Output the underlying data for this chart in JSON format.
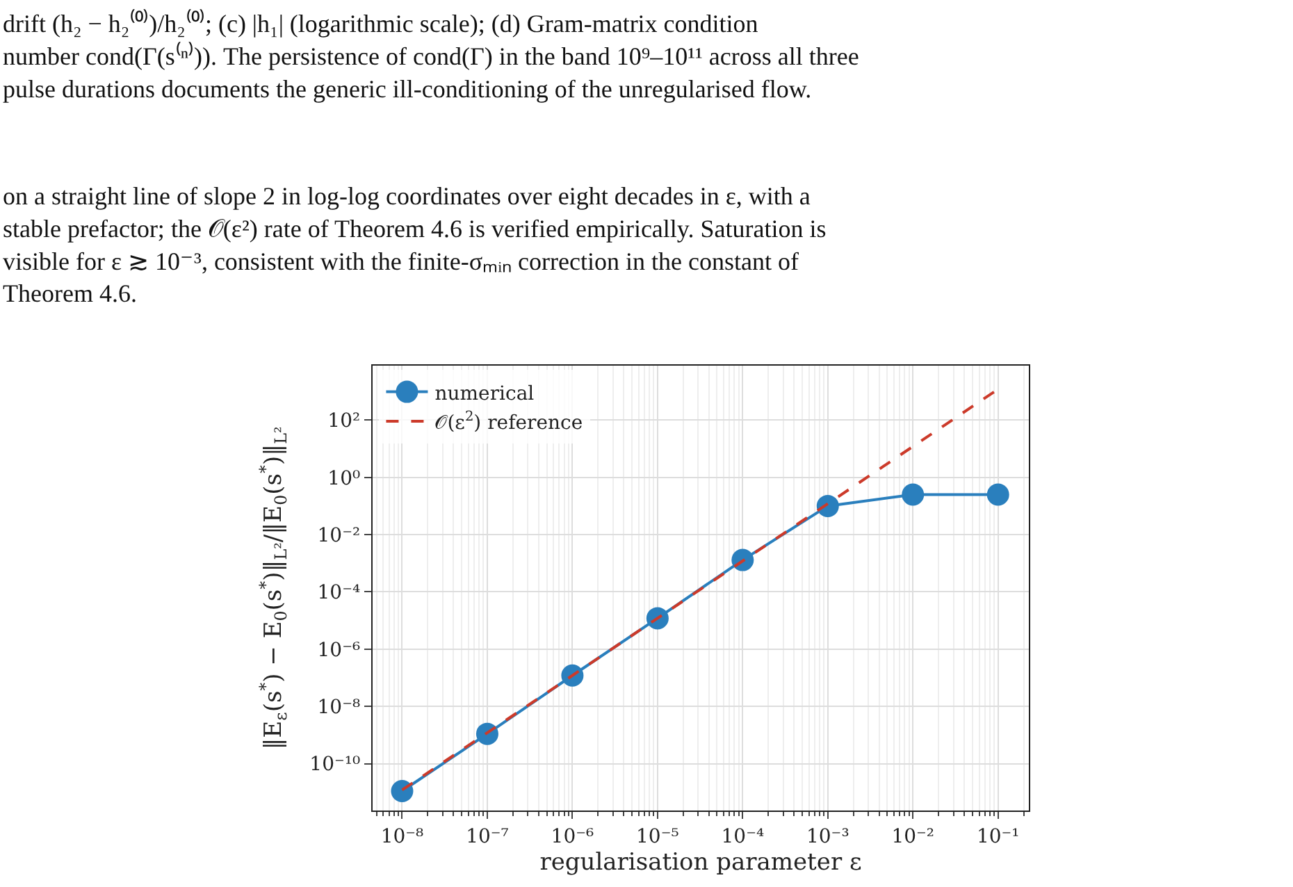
{
  "chart_data": {
    "type": "line",
    "annotations": [
      "drift (h₂ − h₂⁽⁰⁾)/h₂⁽⁰⁾; (c) |h₁| (logarithmic scale); (d) Gram-matrix condition number cond(Γ(s⁽ⁿ⁾)). The persistence of cond(Γ) in the band 10⁹–10¹¹ across all three pulse durations documents the generic ill-conditioning of the unregularised flow.",
      "on a straight line of slope 2 in log-log coordinates over eight decades in ε, with a stable prefactor; the 𝒪(ε²) rate of Theorem 4.6 is verified empirically. Saturation is visible for ε ≳ 10⁻³, consistent with the finite-σₘᵢₙ correction in the constant of Theorem 4.6."
    ],
    "xlabel": "regularisation parameter ε",
    "ylabel": "‖E$_{ε}$(s$^{*}$) − E$_{0}$(s$^{*}$)‖$_{L²}$/‖E$_{0}$(s$^{*}$)‖$_{L²}$",
    "x": [
      1e-08,
      1e-07,
      1e-06,
      1e-05,
      0.0001,
      0.001,
      0.01,
      0.1
    ],
    "series": [
      {
        "name": "numerical",
        "color": "#2a7fbd",
        "marker": "circle",
        "line_style": "solid",
        "values": [
          1.1e-11,
          1.1e-09,
          1.2e-07,
          1.2e-05,
          0.0013,
          0.1,
          0.25,
          0.25
        ]
      },
      {
        "name": "𝒪(ε$^{2}$) reference",
        "color": "#cc3a2a",
        "marker": "none",
        "line_style": "dashed",
        "values": [
          1.2e-11,
          1.2e-09,
          1.2e-07,
          1.2e-05,
          0.0012,
          0.12,
          12,
          1200
        ]
      }
    ],
    "log": "xy",
    "xlim": [
      4.5e-09,
      0.23
    ],
    "ylim": [
      2.3e-12,
      8000.0
    ],
    "xticks": [
      {
        "value": 1e-08,
        "label": "10⁻⁸"
      },
      {
        "value": 1e-07,
        "label": "10⁻⁷"
      },
      {
        "value": 1e-06,
        "label": "10⁻⁶"
      },
      {
        "value": 1e-05,
        "label": "10⁻⁵"
      },
      {
        "value": 0.0001,
        "label": "10⁻⁴"
      },
      {
        "value": 0.001,
        "label": "10⁻³"
      },
      {
        "value": 0.01,
        "label": "10⁻²"
      },
      {
        "value": 0.1,
        "label": "10⁻¹"
      }
    ],
    "yticks": [
      {
        "value": 1e-10,
        "label": "10⁻¹⁰"
      },
      {
        "value": 1e-08,
        "label": "10⁻⁸"
      },
      {
        "value": 1e-06,
        "label": "10⁻⁶"
      },
      {
        "value": 0.0001,
        "label": "10⁻⁴"
      },
      {
        "value": 0.01,
        "label": "10⁻²"
      },
      {
        "value": 1,
        "label": "10⁰"
      },
      {
        "value": 100,
        "label": "10²"
      }
    ],
    "grid": true,
    "legend": "top left"
  }
}
